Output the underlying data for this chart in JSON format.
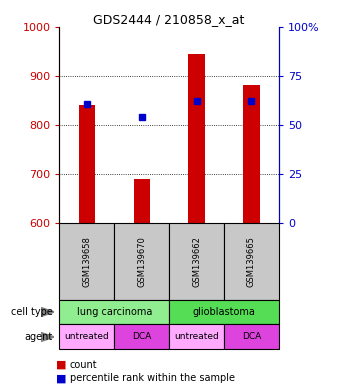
{
  "title": "GDS2444 / 210858_x_at",
  "samples": [
    "GSM139658",
    "GSM139670",
    "GSM139662",
    "GSM139665"
  ],
  "red_values": [
    840,
    690,
    945,
    882
  ],
  "blue_values": [
    843,
    815,
    848,
    848
  ],
  "y_min": 600,
  "y_max": 1000,
  "y_ticks": [
    600,
    700,
    800,
    900,
    1000
  ],
  "right_y_ticks": [
    0,
    25,
    50,
    75,
    100
  ],
  "right_y_labels": [
    "0",
    "25",
    "50",
    "75",
    "100%"
  ],
  "agents": [
    "untreated",
    "DCA",
    "untreated",
    "DCA"
  ],
  "bar_color": "#CC0000",
  "square_color": "#0000CC",
  "sample_bg_color": "#C8C8C8",
  "left_label_color": "#CC0000",
  "right_label_color": "#0000CC",
  "lung_color": "#90EE90",
  "glio_color": "#55DD55",
  "untreated_color": "#FFAAFF",
  "dca_color": "#DD44DD",
  "legend_count_label": "count",
  "legend_pct_label": "percentile rank within the sample"
}
